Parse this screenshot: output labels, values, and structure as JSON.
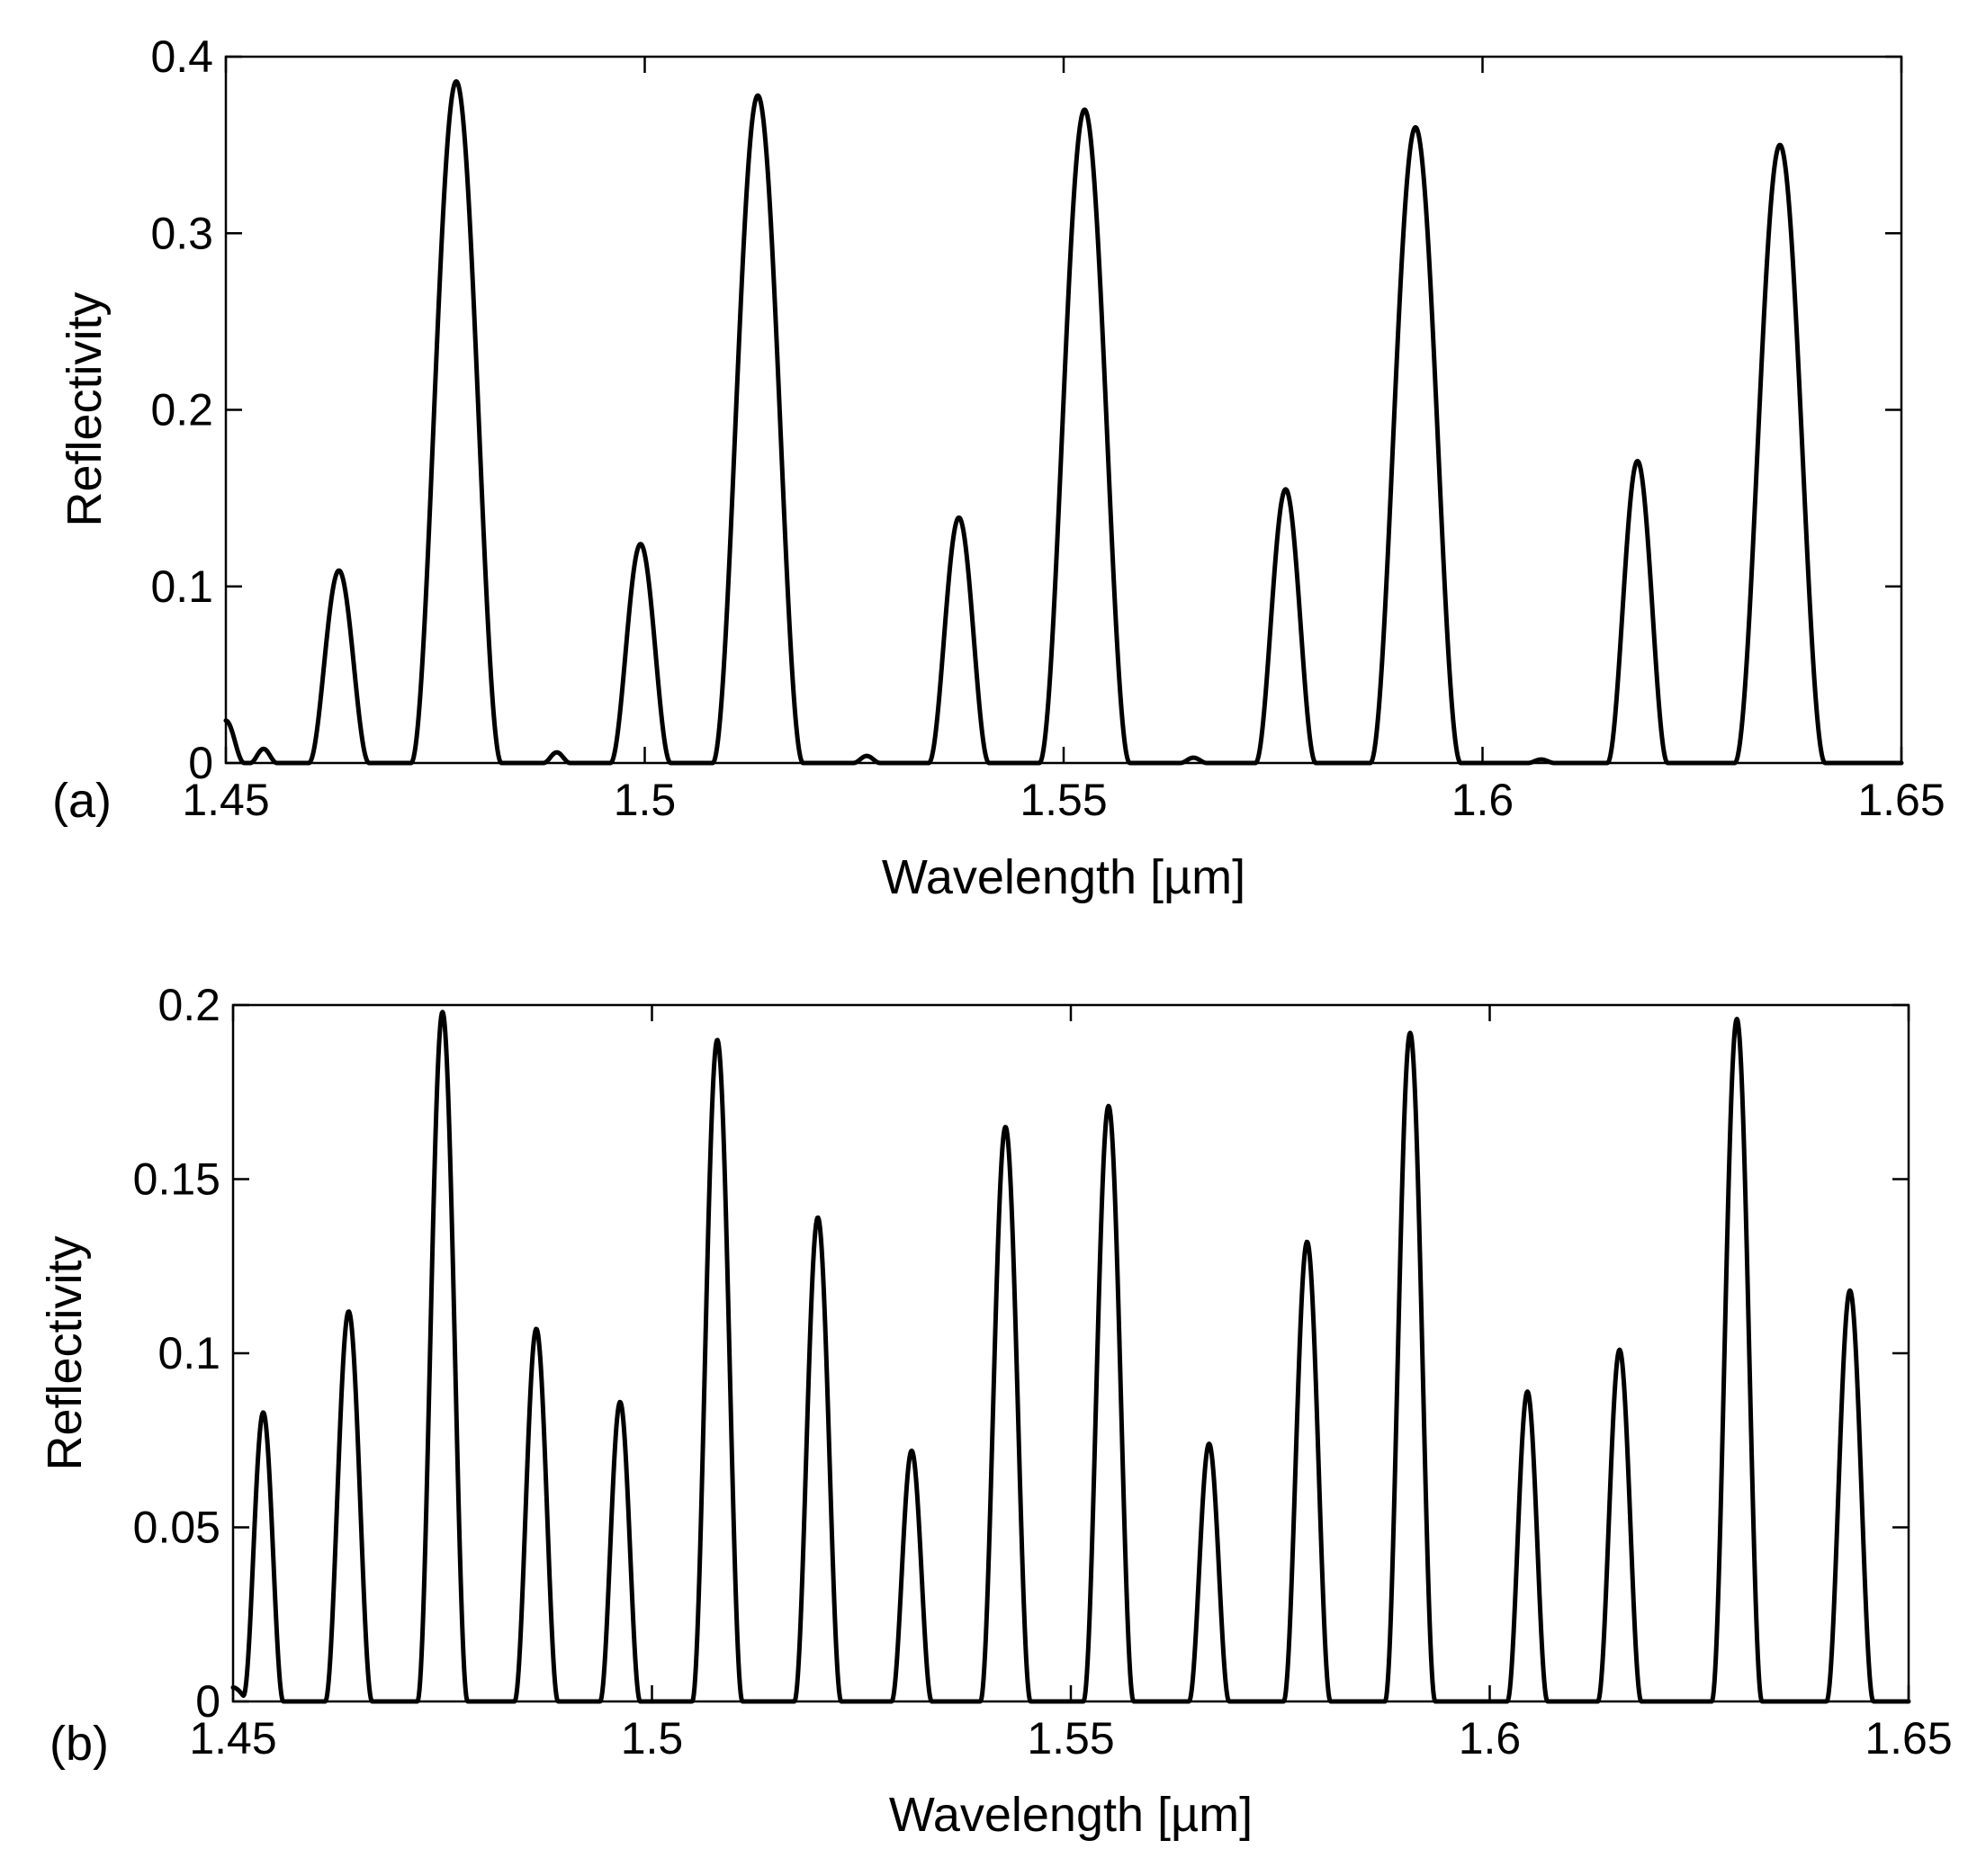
{
  "chart_data": [
    {
      "type": "line",
      "panel_label": "(a)",
      "xlabel": "Wavelength [µm]",
      "ylabel": "Reflectivity",
      "xlim": [
        1.45,
        1.65
      ],
      "ylim": [
        0,
        0.4
      ],
      "xticks": [
        1.45,
        1.5,
        1.55,
        1.6,
        1.65
      ],
      "xtick_labels": [
        "1.45",
        "1.5",
        "1.55",
        "1.6",
        "1.65"
      ],
      "yticks": [
        0,
        0.1,
        0.2,
        0.3,
        0.4
      ],
      "ytick_labels": [
        "0",
        "0.1",
        "0.2",
        "0.3",
        "0.4"
      ],
      "start": {
        "x": 1.45,
        "y": 0.024
      },
      "peaks": [
        {
          "x": 1.4545,
          "y": 0.008,
          "w": 0.0016
        },
        {
          "x": 1.4635,
          "y": 0.109,
          "w": 0.0036
        },
        {
          "x": 1.4775,
          "y": 0.386,
          "w": 0.0054
        },
        {
          "x": 1.4895,
          "y": 0.006,
          "w": 0.0016
        },
        {
          "x": 1.4995,
          "y": 0.124,
          "w": 0.0036
        },
        {
          "x": 1.5135,
          "y": 0.378,
          "w": 0.0054
        },
        {
          "x": 1.5265,
          "y": 0.004,
          "w": 0.0016
        },
        {
          "x": 1.5375,
          "y": 0.139,
          "w": 0.0036
        },
        {
          "x": 1.5525,
          "y": 0.37,
          "w": 0.0054
        },
        {
          "x": 1.5655,
          "y": 0.003,
          "w": 0.0016
        },
        {
          "x": 1.5765,
          "y": 0.155,
          "w": 0.0036
        },
        {
          "x": 1.592,
          "y": 0.36,
          "w": 0.0054
        },
        {
          "x": 1.607,
          "y": 0.002,
          "w": 0.0016
        },
        {
          "x": 1.6185,
          "y": 0.171,
          "w": 0.0036
        },
        {
          "x": 1.6355,
          "y": 0.35,
          "w": 0.0054
        }
      ]
    },
    {
      "type": "line",
      "panel_label": "(b)",
      "xlabel": "Wavelength [µm]",
      "ylabel": "Reflectivity",
      "xlim": [
        1.45,
        1.65
      ],
      "ylim": [
        0,
        0.2
      ],
      "xticks": [
        1.45,
        1.5,
        1.55,
        1.6,
        1.65
      ],
      "xtick_labels": [
        "1.45",
        "1.5",
        "1.55",
        "1.6",
        "1.65"
      ],
      "yticks": [
        0,
        0.05,
        0.1,
        0.15,
        0.2
      ],
      "ytick_labels": [
        "0",
        "0.05",
        "0.1",
        "0.15",
        "0.2"
      ],
      "start": {
        "x": 1.45,
        "y": 0.004
      },
      "peaks": [
        {
          "x": 1.4536,
          "y": 0.083,
          "w": 0.0024
        },
        {
          "x": 1.4638,
          "y": 0.112,
          "w": 0.0028
        },
        {
          "x": 1.475,
          "y": 0.198,
          "w": 0.003
        },
        {
          "x": 1.4862,
          "y": 0.107,
          "w": 0.0026
        },
        {
          "x": 1.4962,
          "y": 0.086,
          "w": 0.0024
        },
        {
          "x": 1.5078,
          "y": 0.19,
          "w": 0.003
        },
        {
          "x": 1.5198,
          "y": 0.139,
          "w": 0.0028
        },
        {
          "x": 1.531,
          "y": 0.072,
          "w": 0.0024
        },
        {
          "x": 1.5422,
          "y": 0.165,
          "w": 0.003
        },
        {
          "x": 1.5545,
          "y": 0.171,
          "w": 0.003
        },
        {
          "x": 1.5665,
          "y": 0.074,
          "w": 0.0024
        },
        {
          "x": 1.5782,
          "y": 0.132,
          "w": 0.0028
        },
        {
          "x": 1.5905,
          "y": 0.192,
          "w": 0.003
        },
        {
          "x": 1.6045,
          "y": 0.089,
          "w": 0.0024
        },
        {
          "x": 1.6155,
          "y": 0.101,
          "w": 0.0026
        },
        {
          "x": 1.6295,
          "y": 0.196,
          "w": 0.003
        },
        {
          "x": 1.643,
          "y": 0.118,
          "w": 0.0028
        }
      ]
    }
  ]
}
